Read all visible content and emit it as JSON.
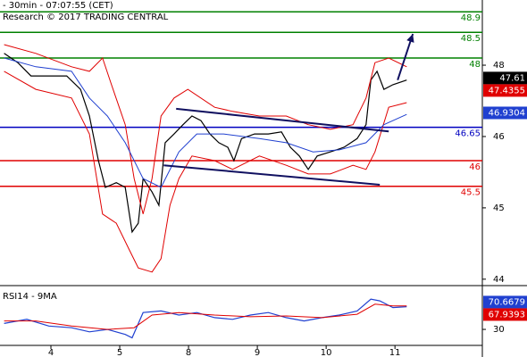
{
  "chart_data": [
    {
      "type": "line",
      "title": "- 30min - 07:07:55 (CET)",
      "subtitle": "Research © 2017 TRADING CENTRAL",
      "xlim": [
        -0.74,
        6.27
      ],
      "xticks": [
        {
          "value": 0,
          "label": "4"
        },
        {
          "value": 1,
          "label": "5"
        },
        {
          "value": 2,
          "label": "8"
        },
        {
          "value": 3,
          "label": "9"
        },
        {
          "value": 4,
          "label": "10"
        },
        {
          "value": 5,
          "label": "11"
        }
      ],
      "ylim": [
        43.6,
        49.13
      ],
      "yticks": [
        {
          "value": 47.86,
          "label": "48"
        },
        {
          "value": 46.47,
          "label": "46"
        },
        {
          "value": 45.08,
          "label": "45"
        },
        {
          "value": 43.69,
          "label": "44"
        }
      ],
      "series": [
        {
          "color": "#000000",
          "x": [
            -0.68,
            -0.48,
            -0.29,
            -0.09,
            0.23,
            0.43,
            0.56,
            0.69,
            0.79,
            0.95,
            1.08,
            1.18,
            1.27,
            1.34,
            1.47,
            1.57,
            1.66,
            1.79,
            1.92,
            2.05,
            2.18,
            2.31,
            2.44,
            2.57,
            2.66,
            2.77,
            2.96,
            3.16,
            3.35,
            3.48,
            3.61,
            3.74,
            3.87,
            4.06,
            4.26,
            4.45,
            4.58,
            4.65,
            4.74,
            4.84,
            4.97,
            5.17
          ],
          "values": [
            48.09,
            47.91,
            47.65,
            47.65,
            47.65,
            47.39,
            46.87,
            46.0,
            45.48,
            45.57,
            45.48,
            44.61,
            44.78,
            45.65,
            45.39,
            45.13,
            46.35,
            46.52,
            46.7,
            46.87,
            46.78,
            46.52,
            46.35,
            46.26,
            46.0,
            46.43,
            46.52,
            46.52,
            46.56,
            46.26,
            46.09,
            45.83,
            46.09,
            46.17,
            46.26,
            46.43,
            46.7,
            47.57,
            47.74,
            47.39,
            47.48,
            47.57
          ]
        },
        {
          "color": "#e00000",
          "x": [
            -0.68,
            -0.22,
            0.3,
            0.56,
            0.75,
            0.88,
            1.08,
            1.21,
            1.34,
            1.47,
            1.6,
            1.79,
            1.99,
            2.38,
            2.64,
            3.03,
            3.42,
            3.74,
            4.06,
            4.39,
            4.58,
            4.71,
            4.91,
            5.17
          ],
          "values": [
            48.26,
            48.09,
            47.83,
            47.74,
            48.0,
            47.48,
            46.7,
            45.65,
            44.96,
            45.65,
            46.87,
            47.22,
            47.39,
            47.04,
            46.96,
            46.87,
            46.87,
            46.7,
            46.61,
            46.7,
            47.22,
            47.91,
            48.0,
            47.83
          ]
        },
        {
          "color": "#e00000",
          "x": [
            -0.68,
            -0.22,
            0.3,
            0.56,
            0.75,
            0.95,
            1.14,
            1.27,
            1.47,
            1.6,
            1.73,
            1.86,
            2.05,
            2.38,
            2.64,
            3.03,
            3.42,
            3.74,
            4.06,
            4.39,
            4.58,
            4.71,
            4.91,
            5.17
          ],
          "values": [
            47.74,
            47.39,
            47.22,
            46.52,
            44.96,
            44.78,
            44.26,
            43.91,
            43.83,
            44.09,
            45.13,
            45.65,
            46.09,
            46.0,
            45.83,
            46.09,
            45.91,
            45.74,
            45.74,
            45.91,
            45.83,
            46.17,
            47.04,
            47.13
          ]
        },
        {
          "color": "#2040d0",
          "x": [
            -0.68,
            -0.22,
            0.3,
            0.56,
            0.82,
            1.08,
            1.34,
            1.6,
            1.86,
            2.12,
            2.51,
            3.03,
            3.42,
            3.81,
            4.19,
            4.58,
            4.84,
            5.17
          ],
          "values": [
            48.0,
            47.83,
            47.74,
            47.22,
            46.87,
            46.35,
            45.65,
            45.48,
            46.17,
            46.52,
            46.52,
            46.43,
            46.35,
            46.17,
            46.21,
            46.35,
            46.7,
            46.9
          ]
        }
      ],
      "trendlines": [
        {
          "color": "#101060",
          "x": [
            1.82,
            4.91
          ],
          "values": [
            47.01,
            46.57
          ]
        },
        {
          "color": "#101060",
          "x": [
            1.64,
            4.78
          ],
          "values": [
            45.91,
            45.53
          ]
        }
      ],
      "arrow": {
        "color": "#101060",
        "x": [
          5.04,
          5.26
        ],
        "values": [
          47.57,
          48.47
        ]
      },
      "levels": [
        {
          "value": 48.9,
          "label": "48.9",
          "color": "#008000"
        },
        {
          "value": 48.5,
          "label": "48.5",
          "color": "#008000"
        },
        {
          "value": 48,
          "label": "48",
          "color": "#008000"
        },
        {
          "value": 46.65,
          "label": "46.65",
          "color": "#0000c0"
        },
        {
          "value": 46,
          "label": "46",
          "color": "#e00000"
        },
        {
          "value": 45.5,
          "label": "45.5",
          "color": "#e00000"
        }
      ],
      "tags": [
        {
          "value": 47.61,
          "color": "#000000"
        },
        {
          "value": 47.4355,
          "color": "#e00000"
        },
        {
          "value": 46.9304,
          "color": "#2040d0"
        }
      ]
    },
    {
      "type": "line",
      "title": "RSI14 - 9MA",
      "ylim": [
        7.5,
        92.5
      ],
      "yticks": [
        30
      ],
      "series": [
        {
          "color": "#2040d0",
          "x": [
            -0.68,
            -0.35,
            -0.03,
            0.3,
            0.56,
            0.82,
            1.08,
            1.18,
            1.34,
            1.6,
            1.86,
            2.12,
            2.38,
            2.64,
            2.9,
            3.16,
            3.42,
            3.68,
            3.94,
            4.19,
            4.45,
            4.65,
            4.78,
            4.97,
            5.17
          ],
          "values": [
            38.8,
            45,
            35,
            32.5,
            26.3,
            30,
            22.5,
            17.5,
            55,
            57.5,
            51.3,
            55,
            47.5,
            45,
            51.3,
            55,
            47.5,
            42.5,
            47.5,
            51.3,
            57.5,
            75,
            72.5,
            62.5,
            63.8
          ]
        },
        {
          "color": "#e00000",
          "x": [
            -0.68,
            -0.22,
            0.3,
            0.82,
            1.21,
            1.47,
            1.86,
            2.38,
            2.9,
            3.42,
            3.94,
            4.45,
            4.71,
            4.97,
            5.17
          ],
          "values": [
            42.5,
            42.5,
            35,
            30,
            32.5,
            51.3,
            55,
            51.3,
            48.8,
            50,
            47.5,
            52.5,
            67.5,
            65,
            65
          ]
        }
      ],
      "tags": [
        {
          "value": 70.6679,
          "color": "#2040d0"
        },
        {
          "value": 67.9393,
          "color": "#e00000"
        }
      ]
    }
  ]
}
